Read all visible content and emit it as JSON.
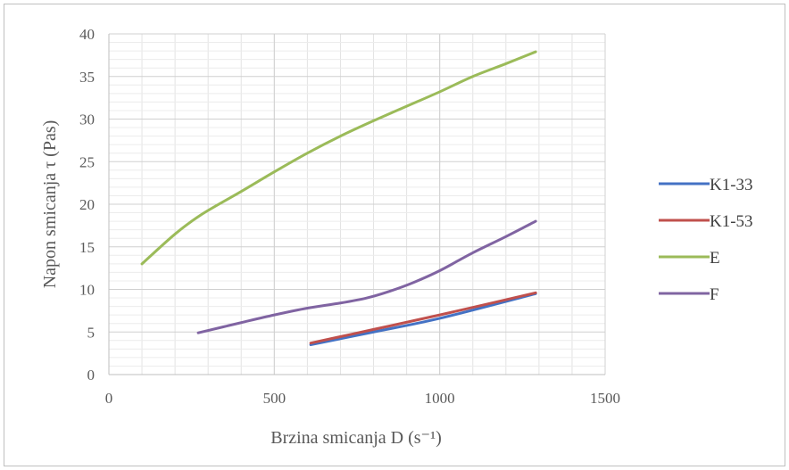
{
  "chart_data": {
    "type": "line",
    "title": "",
    "xlabel": "Brzina smicanja D (s⁻¹)",
    "ylabel": "Napon smicanja τ (Pas)",
    "xlim": [
      0,
      1500
    ],
    "ylim": [
      0,
      40
    ],
    "xticks": [
      0,
      500,
      1000,
      1500
    ],
    "yticks": [
      0,
      5,
      10,
      15,
      20,
      25,
      30,
      35,
      40
    ],
    "xtick_labels": [
      "0",
      "500",
      "1000",
      "1500"
    ],
    "ytick_labels": [
      "0",
      "5",
      "10",
      "15",
      "20",
      "25",
      "30",
      "35",
      "40"
    ],
    "grid": true,
    "legend_position": "right",
    "series": [
      {
        "name": "K1-33",
        "color": "#4472C4",
        "x": [
          610,
          800,
          1000,
          1290
        ],
        "y": [
          3.5,
          5.0,
          6.6,
          9.5
        ]
      },
      {
        "name": "K1-53",
        "color": "#C0504D",
        "x": [
          610,
          800,
          1000,
          1290
        ],
        "y": [
          3.7,
          5.3,
          7.0,
          9.6
        ]
      },
      {
        "name": "E",
        "color": "#9BBB59",
        "x": [
          100,
          200,
          280,
          400,
          500,
          600,
          700,
          800,
          900,
          1000,
          1100,
          1200,
          1290
        ],
        "y": [
          13.0,
          16.5,
          18.8,
          21.5,
          23.8,
          26.0,
          28.0,
          29.8,
          31.5,
          33.2,
          35.0,
          36.5,
          37.9
        ]
      },
      {
        "name": "F",
        "color": "#8064A2",
        "x": [
          270,
          400,
          500,
          600,
          700,
          780,
          850,
          920,
          1000,
          1100,
          1200,
          1290
        ],
        "y": [
          4.9,
          6.1,
          7.0,
          7.8,
          8.4,
          9.0,
          9.8,
          10.8,
          12.2,
          14.3,
          16.2,
          18.0
        ]
      }
    ]
  }
}
